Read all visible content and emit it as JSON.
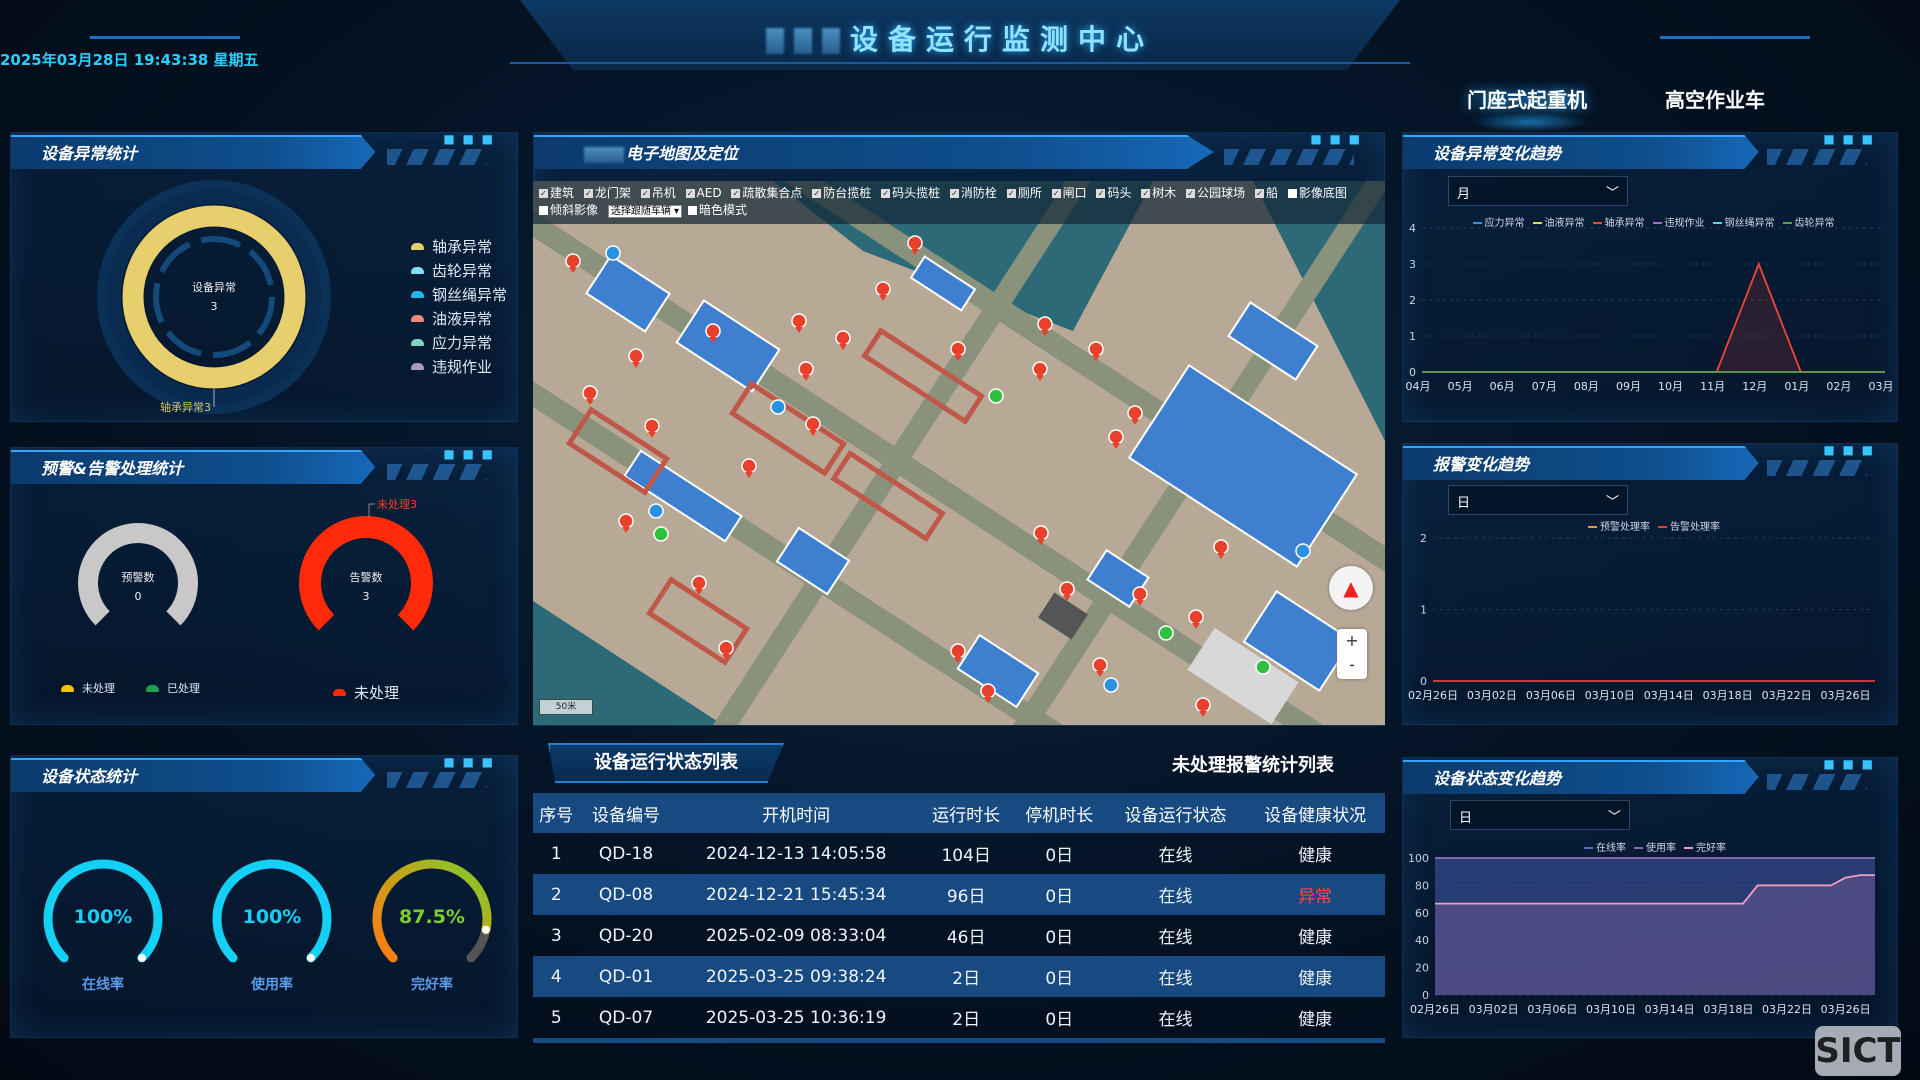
{
  "header": {
    "title": "设备运行监测中心",
    "datetime": "2025年03月28日 19:43:38 星期五",
    "tabs": [
      {
        "label": "门座式起重机",
        "active": true
      },
      {
        "label": "高空作业车",
        "active": false
      }
    ]
  },
  "abnormal_stats": {
    "title": "设备异常统计",
    "center_label": "设备异常",
    "center_value": "3",
    "slice_label": "轴承异常3",
    "legend": [
      {
        "label": "轴承异常",
        "color": "#e8cf6e",
        "value": 3
      },
      {
        "label": "齿轮异常",
        "color": "#7fe0f5",
        "value": 0
      },
      {
        "label": "钢丝绳异常",
        "color": "#23b8f0",
        "value": 0
      },
      {
        "label": "油液异常",
        "color": "#f08a80",
        "value": 0
      },
      {
        "label": "应力异常",
        "color": "#7ed8c0",
        "value": 0
      },
      {
        "label": "违规作业",
        "color": "#a99bc0",
        "value": 0
      }
    ]
  },
  "alarm_handling": {
    "title": "预警&告警处理统计",
    "warning": {
      "label": "预警数",
      "value": "0",
      "color": "#c8c8c8"
    },
    "alarm": {
      "label": "告警数",
      "value": "3",
      "color": "#ff2a0a",
      "callout": "未处理3"
    },
    "warning_legend": [
      {
        "label": "未处理",
        "color": "#f5c400"
      },
      {
        "label": "已处理",
        "color": "#1fa050"
      }
    ],
    "alarm_legend": [
      {
        "label": "未处理",
        "color": "#ff2a0a"
      }
    ]
  },
  "status_stats": {
    "title": "设备状态统计",
    "gauges": [
      {
        "label": "在线率",
        "value_text": "100%",
        "percent": 100,
        "color": "#15d0f5"
      },
      {
        "label": "使用率",
        "value_text": "100%",
        "percent": 100,
        "color": "#15d0f5"
      },
      {
        "label": "完好率",
        "value_text": "87.5%",
        "percent": 87.5,
        "color": "#7ccf2a"
      }
    ]
  },
  "map": {
    "title": "电子地图及定位",
    "layers": [
      {
        "label": "建筑",
        "checked": true
      },
      {
        "label": "龙门架",
        "checked": true
      },
      {
        "label": "吊机",
        "checked": true
      },
      {
        "label": "AED",
        "checked": true
      },
      {
        "label": "疏散集合点",
        "checked": true
      },
      {
        "label": "防台揽桩",
        "checked": true
      },
      {
        "label": "码头揽桩",
        "checked": true
      },
      {
        "label": "消防栓",
        "checked": true
      },
      {
        "label": "厕所",
        "checked": true
      },
      {
        "label": "闸口",
        "checked": true
      },
      {
        "label": "码头",
        "checked": true
      },
      {
        "label": "树木",
        "checked": true
      },
      {
        "label": "公园球场",
        "checked": true
      },
      {
        "label": "船",
        "checked": true
      },
      {
        "label": "影像底图",
        "checked": false
      },
      {
        "label": "倾斜影像",
        "checked": false
      }
    ],
    "follow_select": "选择跟随车辆",
    "dark_mode": {
      "label": "暗色模式",
      "checked": false
    },
    "scale": "50米",
    "zoom_in": "+",
    "zoom_out": "-"
  },
  "table": {
    "tab_active": "设备运行状态列表",
    "tab_other": "未处理报警统计列表",
    "columns": [
      "序号",
      "设备编号",
      "开机时间",
      "运行时长",
      "停机时长",
      "设备运行状态",
      "设备健康状况"
    ],
    "rows": [
      [
        "1",
        "QD-18",
        "2024-12-13 14:05:58",
        "104日",
        "0日",
        "在线",
        "健康"
      ],
      [
        "2",
        "QD-08",
        "2024-12-21 15:45:34",
        "96日",
        "0日",
        "在线",
        "异常"
      ],
      [
        "3",
        "QD-20",
        "2025-02-09 08:33:04",
        "46日",
        "0日",
        "在线",
        "健康"
      ],
      [
        "4",
        "QD-01",
        "2025-03-25 09:38:24",
        "2日",
        "0日",
        "在线",
        "健康"
      ],
      [
        "5",
        "QD-07",
        "2025-03-25 10:36:19",
        "2日",
        "0日",
        "在线",
        "健康"
      ]
    ],
    "abnormal_color": "#ff4a3a"
  },
  "right": {
    "abnormal_trend": {
      "title": "设备异常变化趋势",
      "period": "月"
    },
    "alarm_trend": {
      "title": "报警变化趋势",
      "period": "日"
    },
    "status_trend": {
      "title": "设备状态变化趋势",
      "period": "日"
    }
  },
  "chart_data": [
    {
      "type": "line",
      "categories": [
        "04月",
        "05月",
        "06月",
        "07月",
        "08月",
        "09月",
        "10月",
        "11月",
        "12月",
        "01月",
        "02月",
        "03月"
      ],
      "ylim": [
        0,
        4
      ],
      "yticks": [
        0,
        1,
        2,
        3,
        4
      ],
      "grid": true,
      "legend": "top",
      "series": [
        {
          "name": "应力异常",
          "color": "#3a8fe0",
          "values": [
            0,
            0,
            0,
            0,
            0,
            0,
            0,
            0,
            0,
            0,
            0,
            0
          ]
        },
        {
          "name": "油液异常",
          "color": "#d8e05a",
          "values": [
            0,
            0,
            0,
            0,
            0,
            0,
            0,
            0,
            0,
            0,
            0,
            0
          ]
        },
        {
          "name": "轴承异常",
          "color": "#e8473a",
          "values": [
            0,
            0,
            0,
            0,
            0,
            0,
            0,
            0,
            3,
            0,
            0,
            0
          ],
          "area": true
        },
        {
          "name": "违规作业",
          "color": "#a070d0",
          "values": [
            0,
            0,
            0,
            0,
            0,
            0,
            0,
            0,
            0,
            0,
            0,
            0
          ]
        },
        {
          "name": "钢丝绳异常",
          "color": "#60d0e0",
          "values": [
            0,
            0,
            0,
            0,
            0,
            0,
            0,
            0,
            0,
            0,
            0,
            0
          ]
        },
        {
          "name": "齿轮异常",
          "color": "#5fa050",
          "values": [
            0,
            0,
            0,
            0,
            0,
            0,
            0,
            0,
            0,
            0,
            0,
            0
          ]
        }
      ]
    },
    {
      "type": "line",
      "categories": [
        "02月26日",
        "02月27日",
        "02月28日",
        "03月01日",
        "03月02日",
        "03月03日",
        "03月04日",
        "03月05日",
        "03月06日",
        "03月07日",
        "03月08日",
        "03月09日",
        "03月10日",
        "03月11日",
        "03月12日",
        "03月13日",
        "03月14日",
        "03月15日",
        "03月16日",
        "03月17日",
        "03月18日",
        "03月19日",
        "03月20日",
        "03月21日",
        "03月22日",
        "03月23日",
        "03月24日",
        "03月25日",
        "03月26日",
        "03月27日",
        "03月28日"
      ],
      "tick_labels": [
        "02月26日",
        "03月02日",
        "03月06日",
        "03月10日",
        "03月14日",
        "03月18日",
        "03月22日",
        "03月26日"
      ],
      "ylim": [
        0,
        2
      ],
      "yticks": [
        0,
        1,
        2
      ],
      "grid": true,
      "legend": "top",
      "series": [
        {
          "name": "预警处理率",
          "color": "#e0a040",
          "values": [
            0,
            0,
            0,
            0,
            0,
            0,
            0,
            0,
            0,
            0,
            0,
            0,
            0,
            0,
            0,
            0,
            0,
            0,
            0,
            0,
            0,
            0,
            0,
            0,
            0,
            0,
            0,
            0,
            0,
            0,
            0
          ]
        },
        {
          "name": "告警处理率",
          "color": "#e0403a",
          "values": [
            0,
            0,
            0,
            0,
            0,
            0,
            0,
            0,
            0,
            0,
            0,
            0,
            0,
            0,
            0,
            0,
            0,
            0,
            0,
            0,
            0,
            0,
            0,
            0,
            0,
            0,
            0,
            0,
            0,
            0,
            0
          ]
        }
      ]
    },
    {
      "type": "area",
      "categories": [
        "02月26日",
        "02月27日",
        "02月28日",
        "03月01日",
        "03月02日",
        "03月03日",
        "03月04日",
        "03月05日",
        "03月06日",
        "03月07日",
        "03月08日",
        "03月09日",
        "03月10日",
        "03月11日",
        "03月12日",
        "03月13日",
        "03月14日",
        "03月15日",
        "03月16日",
        "03月17日",
        "03月18日",
        "03月19日",
        "03月20日",
        "03月21日",
        "03月22日",
        "03月23日",
        "03月24日",
        "03月25日",
        "03月26日",
        "03月27日",
        "03月28日"
      ],
      "tick_labels": [
        "02月26日",
        "03月02日",
        "03月06日",
        "03月10日",
        "03月14日",
        "03月18日",
        "03月22日",
        "03月26日"
      ],
      "ylim": [
        0,
        100
      ],
      "yticks": [
        0,
        20,
        40,
        60,
        80,
        100
      ],
      "grid": true,
      "legend": "top",
      "series": [
        {
          "name": "在线率",
          "color": "#4a70c8",
          "values": [
            100,
            100,
            100,
            100,
            100,
            100,
            100,
            100,
            100,
            100,
            100,
            100,
            100,
            100,
            100,
            100,
            100,
            100,
            100,
            100,
            100,
            100,
            100,
            100,
            100,
            100,
            100,
            100,
            100,
            100,
            100
          ]
        },
        {
          "name": "使用率",
          "color": "#8a6ab0",
          "values": [
            100,
            100,
            100,
            100,
            100,
            100,
            100,
            100,
            100,
            100,
            100,
            100,
            100,
            100,
            100,
            100,
            100,
            100,
            100,
            100,
            100,
            100,
            100,
            100,
            100,
            100,
            100,
            100,
            100,
            100,
            100
          ]
        },
        {
          "name": "完好率",
          "color": "#f0a0c0",
          "values": [
            66.7,
            66.7,
            66.7,
            66.7,
            66.7,
            66.7,
            66.7,
            66.7,
            66.7,
            66.7,
            66.7,
            66.7,
            66.7,
            66.7,
            66.7,
            66.7,
            66.7,
            66.7,
            66.7,
            66.7,
            66.7,
            66.7,
            80,
            80,
            80,
            80,
            80,
            80,
            85.7,
            87.5,
            87.5
          ]
        }
      ]
    }
  ]
}
